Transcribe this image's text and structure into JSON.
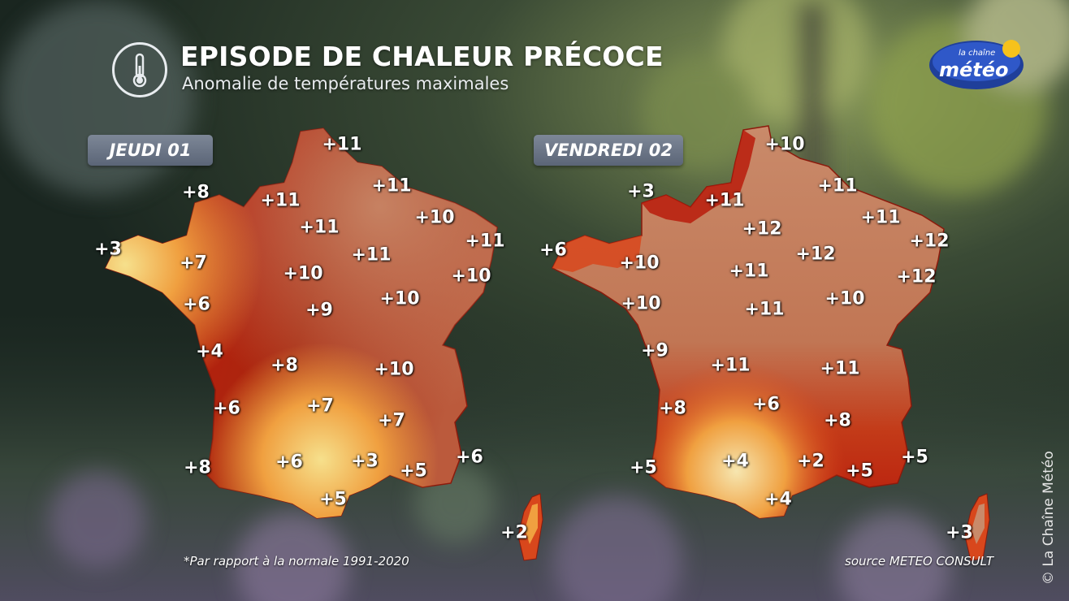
{
  "header": {
    "title": "EPISODE DE CHALEUR PRÉCOCE",
    "subtitle": "Anomalie de températures maximales"
  },
  "logo": {
    "line1": "la chaîne",
    "line2": "météo"
  },
  "colors": {
    "strong_anomaly": "#b81c0c",
    "medium_anomaly": "#d8471c",
    "light_anomaly": "#f0a040",
    "pale_anomaly": "#f6e08c",
    "extreme_anomaly": "#c98a6a",
    "label_bg": "#6b7587"
  },
  "maps": [
    {
      "day": "JEUDI 01",
      "anomalies": [
        "+11",
        "+8",
        "+11",
        "+11",
        "+11",
        "+10",
        "+3",
        "+7",
        "+11",
        "+11",
        "+10",
        "+10",
        "+6",
        "+9",
        "+10",
        "+4",
        "+8",
        "+10",
        "+6",
        "+7",
        "+7",
        "+8",
        "+6",
        "+3",
        "+5",
        "+6",
        "+5",
        "+2"
      ]
    },
    {
      "day": "VENDREDI 02",
      "anomalies": [
        "+10",
        "+3",
        "+11",
        "+11",
        "+11",
        "+12",
        "+12",
        "+6",
        "+10",
        "+12",
        "+11",
        "+12",
        "+10",
        "+10",
        "+11",
        "+9",
        "+11",
        "+11",
        "+8",
        "+6",
        "+8",
        "+5",
        "+4",
        "+2",
        "+5",
        "+5",
        "+4",
        "+3"
      ]
    }
  ],
  "footer": {
    "note": "*Par rapport à la normale 1991-2020",
    "source": "source METEO CONSULT",
    "copyright": "© La Chaîne Météo"
  }
}
